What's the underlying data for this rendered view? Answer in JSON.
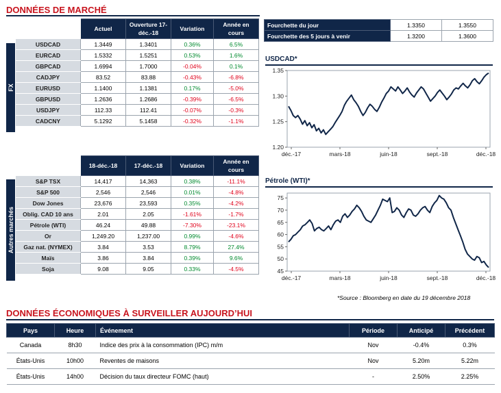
{
  "market": {
    "title": "DONNÉES DE MARCHÉ",
    "fx": {
      "side_label": "FX",
      "headers": [
        "Actuel",
        "Ouverture 17-déc.-18",
        "Variation",
        "Année en cours"
      ],
      "rows": [
        {
          "name": "USDCAD",
          "actuel": "1.3449",
          "ouverture": "1.3401",
          "variation": "0.36%",
          "annee": "6.5%"
        },
        {
          "name": "EURCAD",
          "actuel": "1.5332",
          "ouverture": "1.5251",
          "variation": "0.53%",
          "annee": "1.6%"
        },
        {
          "name": "GBPCAD",
          "actuel": "1.6994",
          "ouverture": "1.7000",
          "variation": "-0.04%",
          "annee": "0.1%"
        },
        {
          "name": "CADJPY",
          "actuel": "83.52",
          "ouverture": "83.88",
          "variation": "-0.43%",
          "annee": "-6.8%"
        },
        {
          "name": "EURUSD",
          "actuel": "1.1400",
          "ouverture": "1.1381",
          "variation": "0.17%",
          "annee": "-5.0%"
        },
        {
          "name": "GBPUSD",
          "actuel": "1.2636",
          "ouverture": "1.2686",
          "variation": "-0.39%",
          "annee": "-6.5%"
        },
        {
          "name": "USDJPY",
          "actuel": "112.33",
          "ouverture": "112.41",
          "variation": "-0.07%",
          "annee": "-0.3%"
        },
        {
          "name": "CADCNY",
          "actuel": "5.1292",
          "ouverture": "5.1458",
          "variation": "-0.32%",
          "annee": "-1.1%"
        }
      ]
    },
    "other": {
      "side_label": "Autres marchés",
      "headers": [
        "18-déc.-18",
        "17-déc.-18",
        "Variation",
        "Année en cours"
      ],
      "rows": [
        {
          "name": "S&P TSX",
          "c1": "14,417",
          "c2": "14,363",
          "variation": "0.38%",
          "annee": "-11.1%"
        },
        {
          "name": "S&P 500",
          "c1": "2,546",
          "c2": "2,546",
          "variation": "0.01%",
          "annee": "-4.8%"
        },
        {
          "name": "Dow Jones",
          "c1": "23,676",
          "c2": "23,593",
          "variation": "0.35%",
          "annee": "-4.2%"
        },
        {
          "name": "Oblig. CAD 10 ans",
          "c1": "2.01",
          "c2": "2.05",
          "variation": "-1.61%",
          "annee": "-1.7%"
        },
        {
          "name": "Pétrole (WTI)",
          "c1": "46.24",
          "c2": "49.88",
          "variation": "-7.30%",
          "annee": "-23.1%"
        },
        {
          "name": "Or",
          "c1": "1,249.20",
          "c2": "1,237.00",
          "variation": "0.99%",
          "annee": "-4.6%"
        },
        {
          "name": "Gaz nat. (NYMEX)",
          "c1": "3.84",
          "c2": "3.53",
          "variation": "8.79%",
          "annee": "27.4%"
        },
        {
          "name": "Maïs",
          "c1": "3.86",
          "c2": "3.84",
          "variation": "0.39%",
          "annee": "9.6%"
        },
        {
          "name": "Soja",
          "c1": "9.08",
          "c2": "9.05",
          "variation": "0.33%",
          "annee": "-4.5%"
        }
      ]
    },
    "range": {
      "day_label": "Fourchette du jour",
      "day_low": "1.3350",
      "day_high": "1.3550",
      "five_label": "Fourchette des 5 jours à venir",
      "five_low": "1.3200",
      "five_high": "1.3600"
    },
    "source": "*Source : Bloomberg en date du  19 décembre 2018"
  },
  "colors": {
    "navy": "#102648",
    "red_title": "#c8141e",
    "positive": "#008a2e",
    "negative": "#e0001a",
    "label_bg": "#d6dbe1"
  },
  "chart_data": [
    {
      "type": "line",
      "title": "USDCAD*",
      "x_tick_labels": [
        "déc.-17",
        "mars-18",
        "juin-18",
        "sept.-18",
        "déc.-18"
      ],
      "y_ticks": [
        1.2,
        1.25,
        1.3,
        1.35
      ],
      "ylim": [
        1.2,
        1.35
      ],
      "grid": false,
      "series": [
        {
          "values": [
            1.28,
            1.272,
            1.262,
            1.258,
            1.262,
            1.255,
            1.245,
            1.252,
            1.242,
            1.248,
            1.238,
            1.244,
            1.232,
            1.237,
            1.228,
            1.234,
            1.225,
            1.23,
            1.235,
            1.24,
            1.248,
            1.255,
            1.262,
            1.27,
            1.282,
            1.29,
            1.296,
            1.302,
            1.293,
            1.287,
            1.28,
            1.27,
            1.262,
            1.268,
            1.277,
            1.284,
            1.28,
            1.274,
            1.27,
            1.278,
            1.288,
            1.296,
            1.305,
            1.31,
            1.318,
            1.314,
            1.31,
            1.318,
            1.312,
            1.305,
            1.31,
            1.316,
            1.308,
            1.302,
            1.298,
            1.306,
            1.312,
            1.318,
            1.314,
            1.306,
            1.298,
            1.29,
            1.295,
            1.3,
            1.307,
            1.312,
            1.306,
            1.3,
            1.293,
            1.298,
            1.304,
            1.312,
            1.316,
            1.314,
            1.32,
            1.325,
            1.32,
            1.316,
            1.322,
            1.33,
            1.334,
            1.328,
            1.324,
            1.33,
            1.337,
            1.342,
            1.345
          ]
        }
      ]
    },
    {
      "type": "line",
      "title": "Pétrole (WTI)*",
      "x_tick_labels": [
        "déc.-17",
        "mars-18",
        "juin-18",
        "sept.-18",
        "déc.-18"
      ],
      "y_ticks": [
        45,
        50,
        55,
        60,
        65,
        70,
        75
      ],
      "ylim": [
        45,
        77
      ],
      "grid": false,
      "series": [
        {
          "values": [
            57,
            58,
            59.5,
            60,
            61,
            62,
            63.5,
            64,
            65,
            66,
            64.5,
            61.5,
            62.5,
            63,
            62,
            61.5,
            62.5,
            63.5,
            62,
            64,
            65.5,
            66,
            65,
            67.5,
            68.5,
            67,
            68,
            69.5,
            70.5,
            72,
            71,
            69.5,
            67.5,
            66,
            65.5,
            65,
            66.5,
            68,
            70,
            72,
            74.5,
            74,
            73.5,
            75,
            69,
            69.5,
            71,
            70,
            68,
            67,
            69,
            70.5,
            70,
            68,
            67.5,
            68.5,
            70,
            71,
            71.5,
            70,
            69,
            71.5,
            73,
            74,
            76,
            75,
            74.5,
            73,
            71,
            70,
            67,
            64.5,
            62,
            59.5,
            57,
            54,
            52,
            51,
            50,
            49.5,
            51,
            50.5,
            48.5,
            49,
            47.5,
            46.5
          ]
        }
      ]
    }
  ],
  "economic": {
    "title_part1": "DONNÉES ÉCONOMIQUES À SURVEILLER",
    "title_part2": "AUJOURD’HUI",
    "headers": [
      "Pays",
      "Heure",
      "Événement",
      "Période",
      "Anticipé",
      "Précédent"
    ],
    "rows": [
      {
        "pays": "Canada",
        "heure": "8h30",
        "evenement": "Indice des prix à la consommation (IPC) m/m",
        "periode": "Nov",
        "anticipe": "-0.4%",
        "precedent": "0.3%"
      },
      {
        "pays": "États-Unis",
        "heure": "10h00",
        "evenement": "Reventes de maisons",
        "periode": "Nov",
        "anticipe": "5.20m",
        "precedent": "5.22m"
      },
      {
        "pays": "États-Unis",
        "heure": "14h00",
        "evenement": "Décision du taux directeur FOMC (haut)",
        "periode": "-",
        "anticipe": "2.50%",
        "precedent": "2.25%"
      }
    ]
  }
}
